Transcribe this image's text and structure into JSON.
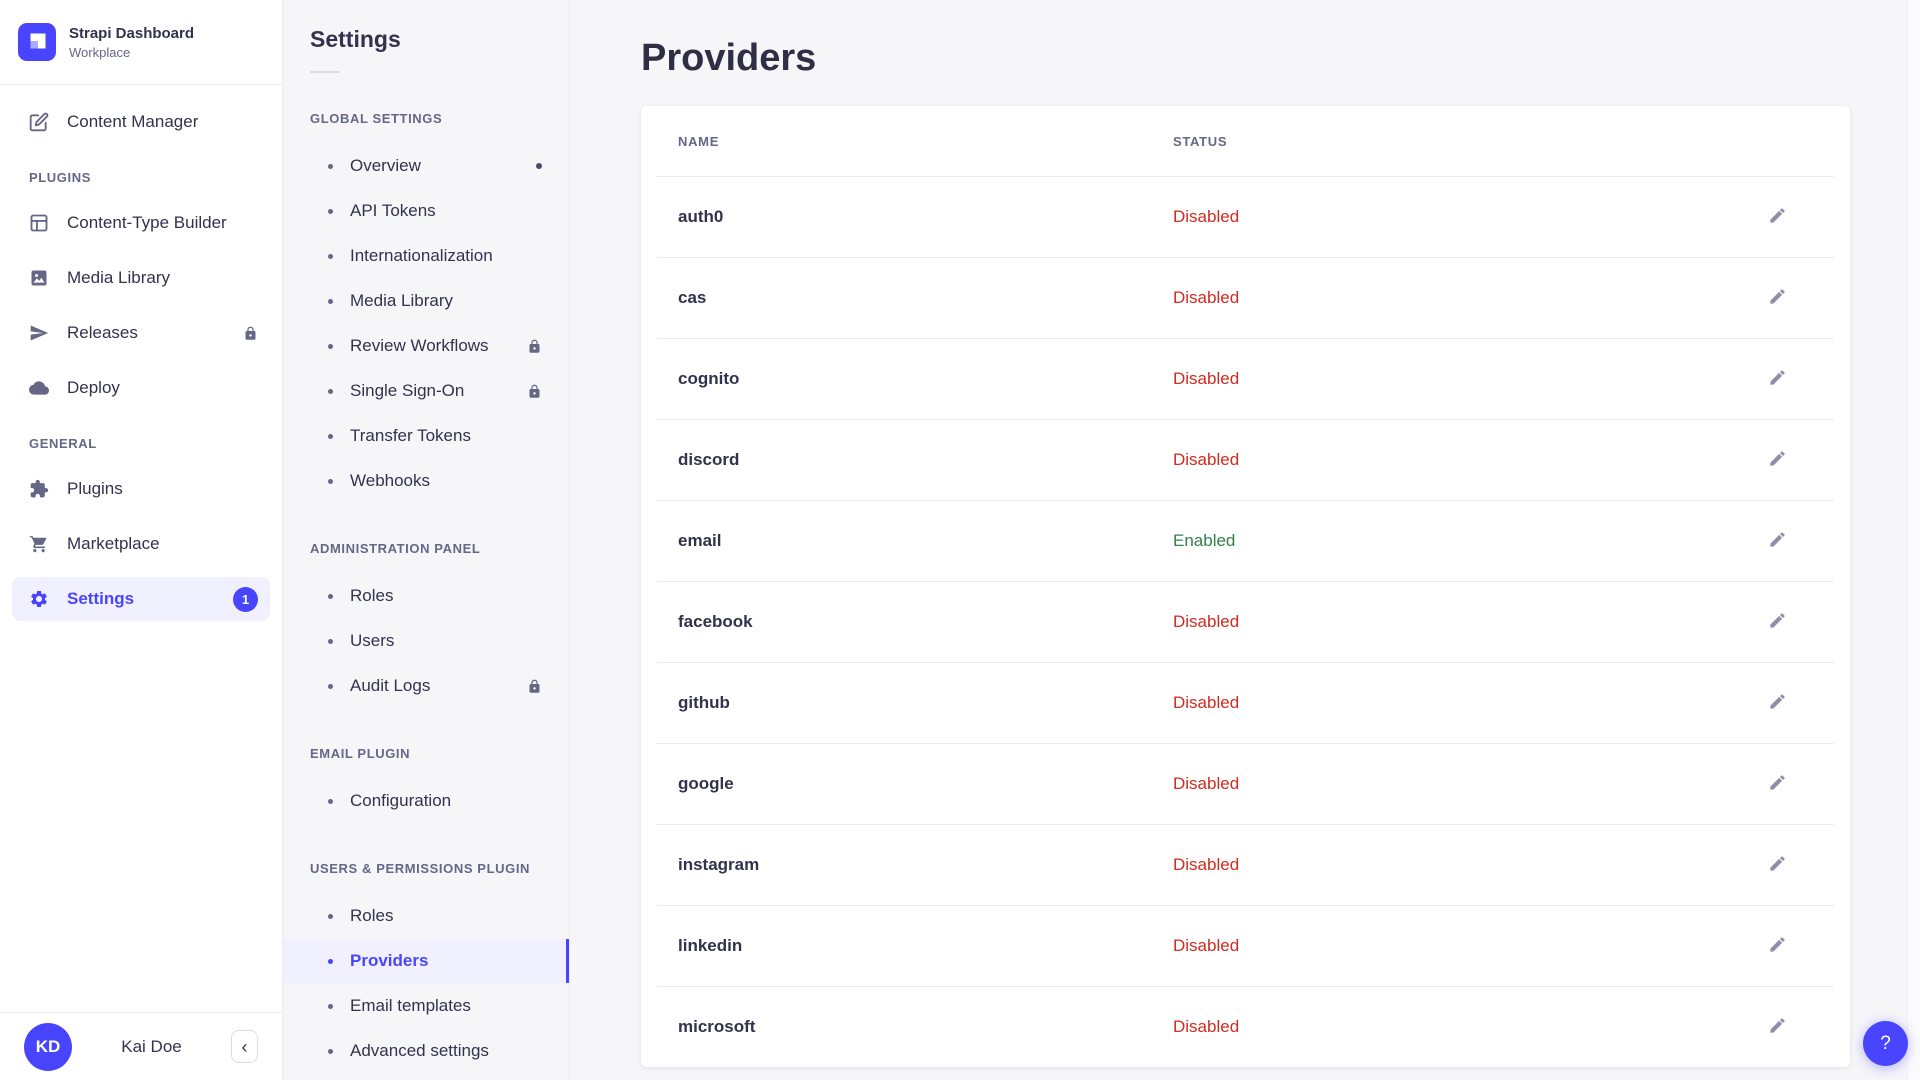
{
  "brand": {
    "title": "Strapi Dashboard",
    "subtitle": "Workplace",
    "logo_icon": "strapi-logo-icon"
  },
  "main_nav": {
    "sections": [
      {
        "header": "",
        "items": [
          {
            "label": "Content Manager",
            "icon": "content-manager-icon"
          }
        ]
      },
      {
        "header": "PLUGINS",
        "items": [
          {
            "label": "Content-Type Builder",
            "icon": "content-type-builder-icon"
          },
          {
            "label": "Media Library",
            "icon": "media-library-icon"
          },
          {
            "label": "Releases",
            "icon": "releases-icon",
            "locked": true
          },
          {
            "label": "Deploy",
            "icon": "deploy-icon"
          }
        ]
      },
      {
        "header": "GENERAL",
        "items": [
          {
            "label": "Plugins",
            "icon": "plugins-icon"
          },
          {
            "label": "Marketplace",
            "icon": "marketplace-icon"
          },
          {
            "label": "Settings",
            "icon": "settings-icon",
            "active": true,
            "badge": "1"
          }
        ]
      }
    ],
    "user": {
      "initials": "KD",
      "name": "Kai Doe",
      "collapse_glyph": "‹"
    }
  },
  "subnav": {
    "title": "Settings",
    "sections": [
      {
        "header": "GLOBAL SETTINGS",
        "items": [
          {
            "label": "Overview",
            "dot": true
          },
          {
            "label": "API Tokens"
          },
          {
            "label": "Internationalization"
          },
          {
            "label": "Media Library"
          },
          {
            "label": "Review Workflows",
            "locked": true
          },
          {
            "label": "Single Sign-On",
            "locked": true
          },
          {
            "label": "Transfer Tokens"
          },
          {
            "label": "Webhooks"
          }
        ]
      },
      {
        "header": "ADMINISTRATION PANEL",
        "items": [
          {
            "label": "Roles"
          },
          {
            "label": "Users"
          },
          {
            "label": "Audit Logs",
            "locked": true
          }
        ]
      },
      {
        "header": "EMAIL PLUGIN",
        "items": [
          {
            "label": "Configuration"
          }
        ]
      },
      {
        "header": "USERS & PERMISSIONS PLUGIN",
        "items": [
          {
            "label": "Roles"
          },
          {
            "label": "Providers",
            "active": true
          },
          {
            "label": "Email templates"
          },
          {
            "label": "Advanced settings"
          }
        ]
      }
    ]
  },
  "main": {
    "title": "Providers",
    "table": {
      "columns": [
        "NAME",
        "STATUS"
      ],
      "rows": [
        {
          "name": "auth0",
          "status": "Disabled"
        },
        {
          "name": "cas",
          "status": "Disabled"
        },
        {
          "name": "cognito",
          "status": "Disabled"
        },
        {
          "name": "discord",
          "status": "Disabled"
        },
        {
          "name": "email",
          "status": "Enabled"
        },
        {
          "name": "facebook",
          "status": "Disabled"
        },
        {
          "name": "github",
          "status": "Disabled"
        },
        {
          "name": "google",
          "status": "Disabled"
        },
        {
          "name": "instagram",
          "status": "Disabled"
        },
        {
          "name": "linkedin",
          "status": "Disabled"
        },
        {
          "name": "microsoft",
          "status": "Disabled"
        }
      ]
    },
    "help_label": "?"
  },
  "colors": {
    "primary": "#4945ff",
    "active_bg": "#f0f0ff",
    "text": "#32324d",
    "muted": "#666687",
    "icon": "#8e8ea9",
    "disabled": "#d02b20",
    "enabled": "#328048",
    "border": "#eaeaef",
    "bg": "#f6f6f9"
  }
}
